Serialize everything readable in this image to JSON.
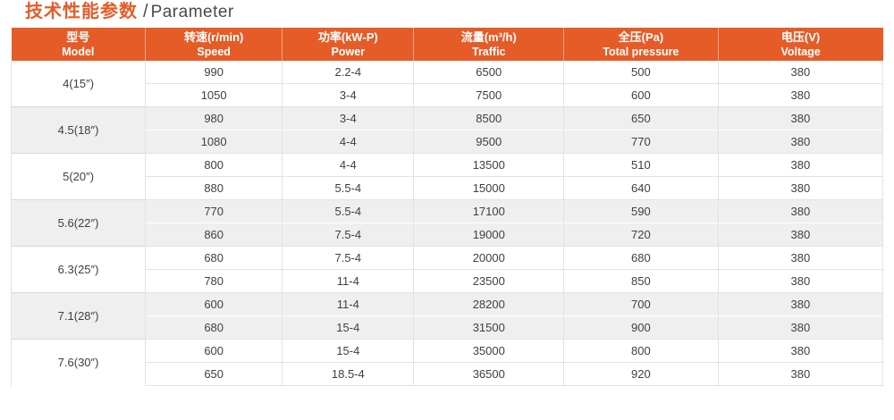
{
  "title": {
    "zh": "技术性能参数",
    "separator": "/",
    "en": "Parameter"
  },
  "colors": {
    "accent_orange": "#e55c28",
    "stripe_gray": "#efefef",
    "grid_line": "#e2e2e2",
    "title_text": "#4a4a4a",
    "body_text": "#404040",
    "header_text": "#ffffff"
  },
  "table": {
    "columns": [
      {
        "zh": "型号",
        "en": "Model"
      },
      {
        "zh": "转速(r/min)",
        "en": "Speed"
      },
      {
        "zh": "功率(kW-P)",
        "en": "Power"
      },
      {
        "zh": "流量(m³/h)",
        "en": "Traffic"
      },
      {
        "zh": "全压(Pa)",
        "en": "Total pressure"
      },
      {
        "zh": "电压(V)",
        "en": "Voltage"
      }
    ],
    "column_widths_pct": [
      15.4,
      15.7,
      15.1,
      17.2,
      17.7,
      18.9
    ],
    "groups": [
      {
        "model": "4(15″)",
        "rows": [
          [
            "990",
            "2.2-4",
            "6500",
            "500",
            "380"
          ],
          [
            "1050",
            "3-4",
            "7500",
            "600",
            "380"
          ]
        ]
      },
      {
        "model": "4.5(18″)",
        "rows": [
          [
            "980",
            "3-4",
            "8500",
            "650",
            "380"
          ],
          [
            "1080",
            "4-4",
            "9500",
            "770",
            "380"
          ]
        ]
      },
      {
        "model": "5(20″)",
        "rows": [
          [
            "800",
            "4-4",
            "13500",
            "510",
            "380"
          ],
          [
            "880",
            "5.5-4",
            "15000",
            "640",
            "380"
          ]
        ]
      },
      {
        "model": "5.6(22″)",
        "rows": [
          [
            "770",
            "5.5-4",
            "17100",
            "590",
            "380"
          ],
          [
            "860",
            "7.5-4",
            "19000",
            "720",
            "380"
          ]
        ]
      },
      {
        "model": "6.3(25″)",
        "rows": [
          [
            "680",
            "7.5-4",
            "20000",
            "680",
            "380"
          ],
          [
            "780",
            "11-4",
            "23500",
            "850",
            "380"
          ]
        ]
      },
      {
        "model": "7.1(28″)",
        "rows": [
          [
            "600",
            "11-4",
            "28200",
            "700",
            "380"
          ],
          [
            "680",
            "15-4",
            "31500",
            "900",
            "380"
          ]
        ]
      },
      {
        "model": "7.6(30″)",
        "rows": [
          [
            "600",
            "15-4",
            "35000",
            "800",
            "380"
          ],
          [
            "650",
            "18.5-4",
            "36500",
            "920",
            "380"
          ]
        ]
      }
    ],
    "cell_names": [
      "cell-speed",
      "cell-power",
      "cell-traffic",
      "cell-total-pressure",
      "cell-voltage"
    ]
  }
}
